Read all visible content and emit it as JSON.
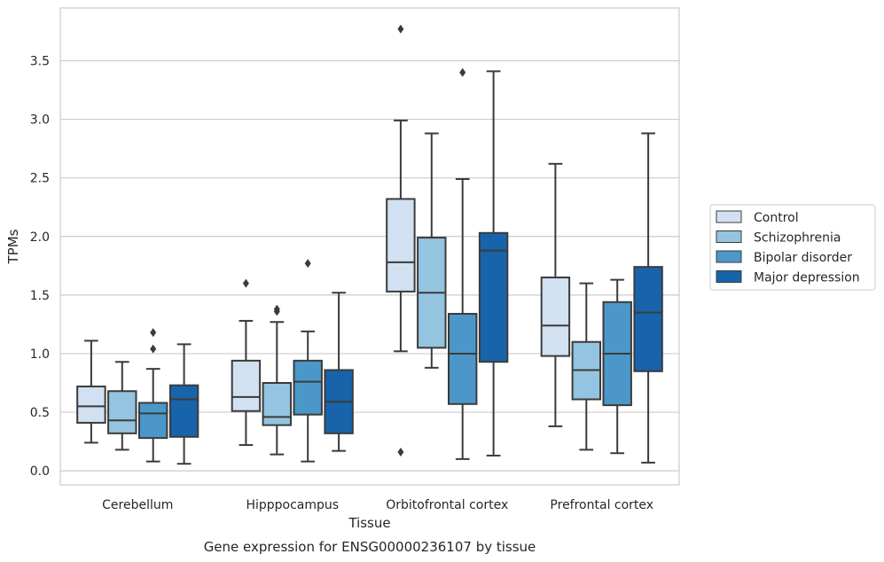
{
  "chart_data": {
    "type": "box",
    "xlabel": "Tissue",
    "ylabel": "TPMs",
    "caption": "Gene expression for ENSG00000236107 by tissue",
    "ylim": [
      -0.12,
      3.95
    ],
    "yticks": [
      "0.0",
      "0.5",
      "1.0",
      "1.5",
      "2.0",
      "2.5",
      "3.0",
      "3.5"
    ],
    "grid": "horizontal",
    "legend_position": "right",
    "categories": [
      "Cerebellum",
      "Hipppocampus",
      "Orbitofrontal cortex",
      "Prefrontal cortex"
    ],
    "series": [
      {
        "name": "Control",
        "color": "#d1e1f1",
        "boxes": [
          {
            "whislo": 0.24,
            "q1": 0.41,
            "med": 0.55,
            "q3": 0.72,
            "whishi": 1.11,
            "fliers": []
          },
          {
            "whislo": 0.22,
            "q1": 0.51,
            "med": 0.63,
            "q3": 0.94,
            "whishi": 1.28,
            "fliers": [
              1.6
            ]
          },
          {
            "whislo": 1.02,
            "q1": 1.53,
            "med": 1.78,
            "q3": 2.32,
            "whishi": 2.99,
            "fliers": [
              3.77,
              0.16
            ]
          },
          {
            "whislo": 0.38,
            "q1": 0.98,
            "med": 1.24,
            "q3": 1.65,
            "whishi": 2.62,
            "fliers": []
          }
        ]
      },
      {
        "name": "Schizophrenia",
        "color": "#94c4df",
        "boxes": [
          {
            "whislo": 0.18,
            "q1": 0.32,
            "med": 0.43,
            "q3": 0.68,
            "whishi": 0.93,
            "fliers": []
          },
          {
            "whislo": 0.14,
            "q1": 0.39,
            "med": 0.46,
            "q3": 0.75,
            "whishi": 1.27,
            "fliers": [
              1.36,
              1.38
            ]
          },
          {
            "whislo": 0.88,
            "q1": 1.05,
            "med": 1.52,
            "q3": 1.99,
            "whishi": 2.88,
            "fliers": []
          },
          {
            "whislo": 0.18,
            "q1": 0.61,
            "med": 0.86,
            "q3": 1.1,
            "whishi": 1.6,
            "fliers": []
          }
        ]
      },
      {
        "name": "Bipolar disorder",
        "color": "#4b97c9",
        "boxes": [
          {
            "whislo": 0.08,
            "q1": 0.28,
            "med": 0.49,
            "q3": 0.58,
            "whishi": 0.87,
            "fliers": [
              1.04,
              1.18
            ]
          },
          {
            "whislo": 0.08,
            "q1": 0.48,
            "med": 0.76,
            "q3": 0.94,
            "whishi": 1.19,
            "fliers": [
              1.77
            ]
          },
          {
            "whislo": 0.1,
            "q1": 0.57,
            "med": 1.0,
            "q3": 1.34,
            "whishi": 2.49,
            "fliers": [
              3.4
            ]
          },
          {
            "whislo": 0.15,
            "q1": 0.56,
            "med": 1.0,
            "q3": 1.44,
            "whishi": 1.63,
            "fliers": []
          }
        ]
      },
      {
        "name": "Major depression",
        "color": "#1764ab",
        "boxes": [
          {
            "whislo": 0.06,
            "q1": 0.29,
            "med": 0.61,
            "q3": 0.73,
            "whishi": 1.08,
            "fliers": []
          },
          {
            "whislo": 0.17,
            "q1": 0.32,
            "med": 0.59,
            "q3": 0.86,
            "whishi": 1.52,
            "fliers": []
          },
          {
            "whislo": 0.13,
            "q1": 0.93,
            "med": 1.88,
            "q3": 2.03,
            "whishi": 3.41,
            "fliers": []
          },
          {
            "whislo": 0.07,
            "q1": 0.85,
            "med": 1.35,
            "q3": 1.74,
            "whishi": 2.88,
            "fliers": []
          }
        ]
      }
    ]
  }
}
